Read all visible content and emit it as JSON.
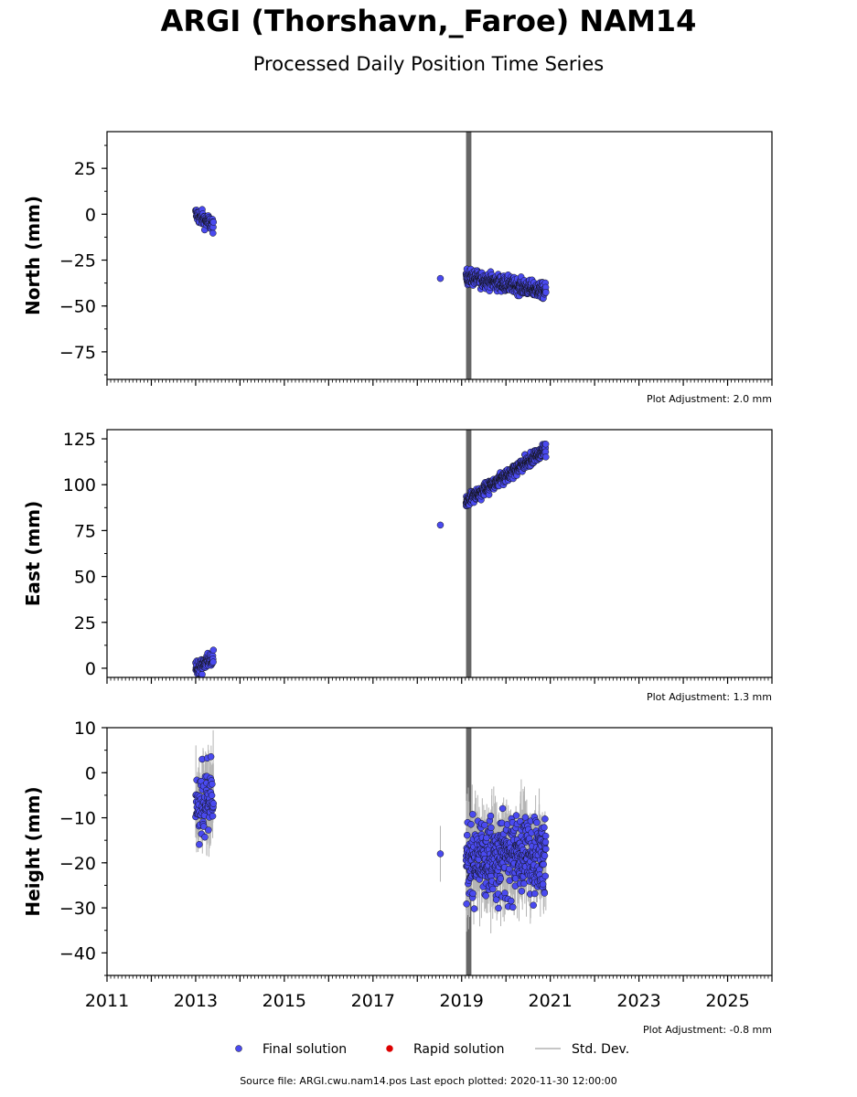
{
  "title": "ARGI (Thorshavn,_Faroe) NAM14",
  "subtitle": "Processed Daily Position Time Series",
  "footer": "Source file: ARGI.cwu.nam14.pos  Last epoch plotted: 2020-11-30 12:00:00",
  "colors": {
    "final": "#4a4af0",
    "rapid": "#dd0000",
    "std": "#b4b4b4",
    "shade": "#555555"
  },
  "legend": {
    "final": "Final solution",
    "rapid": "Rapid solution",
    "std": "Std. Dev."
  },
  "chart_data": [
    {
      "type": "scatter",
      "ylabel": "North (mm)",
      "adjustment": "Plot Adjustment: 2.0 mm",
      "xlim": [
        2011,
        2026
      ],
      "ylim": [
        -90,
        45
      ],
      "yticks": [
        25,
        0,
        -25,
        -50,
        -75
      ],
      "shade_x": [
        2019.1,
        2019.22
      ],
      "series": [
        {
          "x_start": 2013.0,
          "x_end": 2013.4,
          "y_start": 0,
          "y_end": -6,
          "noise": 3
        },
        {
          "x_start": 2018.52,
          "x_end": 2018.52,
          "y_start": -35,
          "y_end": -35,
          "noise": 0
        },
        {
          "x_start": 2019.1,
          "x_end": 2020.9,
          "y_start": -34,
          "y_end": -42,
          "noise": 3
        }
      ]
    },
    {
      "type": "scatter",
      "ylabel": "East (mm)",
      "adjustment": "Plot Adjustment: 1.3 mm",
      "xlim": [
        2011,
        2026
      ],
      "ylim": [
        -5,
        130
      ],
      "yticks": [
        125,
        100,
        75,
        50,
        25,
        0
      ],
      "shade_x": [
        2019.1,
        2019.22
      ],
      "series": [
        {
          "x_start": 2013.0,
          "x_end": 2013.4,
          "y_start": 0,
          "y_end": 6,
          "noise": 3
        },
        {
          "x_start": 2018.52,
          "x_end": 2018.52,
          "y_start": 78,
          "y_end": 78,
          "noise": 0
        },
        {
          "x_start": 2019.1,
          "x_end": 2020.9,
          "y_start": 91,
          "y_end": 119,
          "noise": 2.5
        }
      ]
    },
    {
      "type": "scatter",
      "ylabel": "Height (mm)",
      "adjustment": "Plot Adjustment: -0.8 mm",
      "xlabel_ticks": [
        "2011",
        "2013",
        "2015",
        "2017",
        "2019",
        "2021",
        "2023",
        "2025"
      ],
      "xlim": [
        2011,
        2026
      ],
      "ylim": [
        -45,
        10
      ],
      "yticks": [
        10,
        0,
        -10,
        -20,
        -30,
        -40
      ],
      "shade_x": [
        2019.1,
        2019.22
      ],
      "series": [
        {
          "x_start": 2013.0,
          "x_end": 2013.4,
          "y_start": -7,
          "y_end": -5,
          "noise": 6,
          "err": 5
        },
        {
          "x_start": 2018.52,
          "x_end": 2018.52,
          "y_start": -18,
          "y_end": -18,
          "noise": 0,
          "err": 7
        },
        {
          "x_start": 2019.1,
          "x_end": 2020.9,
          "y_start": -19,
          "y_end": -18,
          "noise": 6,
          "err": 5
        }
      ]
    }
  ]
}
